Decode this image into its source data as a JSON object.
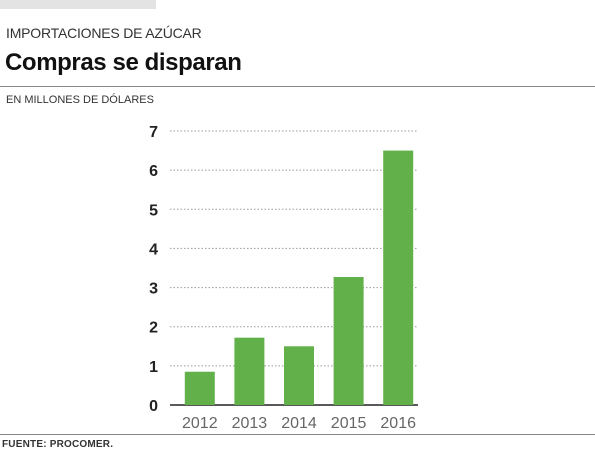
{
  "header": {
    "kicker": "IMPORTACIONES DE AZÚCAR",
    "title": "Compras se disparan",
    "units": "EN MILLONES DE DÓLARES"
  },
  "footer": {
    "source": "FUENTE: PROCOMER."
  },
  "colors": {
    "bar": "#62b04a",
    "grid": "#999999",
    "axis": "#222222"
  },
  "chart_data": {
    "type": "bar",
    "categories": [
      "2012",
      "2013",
      "2014",
      "2015",
      "2016"
    ],
    "values": [
      0.85,
      1.72,
      1.5,
      3.27,
      6.5
    ],
    "yticks": [
      "0",
      "1",
      "2",
      "3",
      "4",
      "5",
      "6",
      "7"
    ],
    "ylim": [
      0,
      7
    ],
    "grid": true,
    "title": "Compras se disparan",
    "ylabel": "EN MILLONES DE DÓLARES",
    "xlabel": ""
  }
}
